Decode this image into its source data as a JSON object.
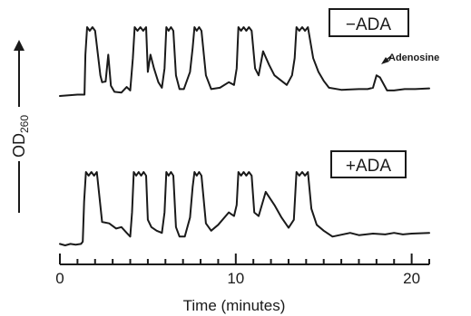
{
  "chart_data": {
    "type": "line",
    "xlabel": "Time (minutes)",
    "ylabel_main": "OD",
    "ylabel_sub": "260",
    "xlim": [
      0,
      21
    ],
    "xticks": [
      0,
      10,
      20
    ],
    "xtick_labels": [
      "0",
      "10",
      "20"
    ],
    "grid": false,
    "series": [
      {
        "name": "−ADA",
        "x": [
          0,
          1,
          1.4,
          1.45,
          1.55,
          2.0,
          2.3,
          2.4,
          2.6,
          2.75,
          2.9,
          3.1,
          3.5,
          3.8,
          4.0,
          4.15,
          4.25,
          4.9,
          5.0,
          5.15,
          5.35,
          5.6,
          5.8,
          5.95,
          6.05,
          6.45,
          6.6,
          6.8,
          7.05,
          7.4,
          7.55,
          7.65,
          8.05,
          8.3,
          8.6,
          9.1,
          9.6,
          9.9,
          10.05,
          10.15,
          10.9,
          11.1,
          11.3,
          11.55,
          11.9,
          12.2,
          12.6,
          12.9,
          13.2,
          13.35,
          13.45,
          14.1,
          14.4,
          14.7,
          15.0,
          15.3,
          16.0,
          17.0,
          17.5,
          17.8,
          18.0,
          18.2,
          18.6,
          19.0,
          19.6,
          20.2,
          21.0
        ],
        "y": [
          0.0,
          0.02,
          0.02,
          0.6,
          1.0,
          1.0,
          0.3,
          0.2,
          0.21,
          0.6,
          0.15,
          0.06,
          0.05,
          0.13,
          0.08,
          0.55,
          1.0,
          1.0,
          0.35,
          0.6,
          0.4,
          0.2,
          0.12,
          0.4,
          1.0,
          1.0,
          0.3,
          0.1,
          0.1,
          0.35,
          0.7,
          1.0,
          1.0,
          0.3,
          0.1,
          0.12,
          0.2,
          0.16,
          0.4,
          1.0,
          1.0,
          0.4,
          0.3,
          0.65,
          0.45,
          0.3,
          0.22,
          0.16,
          0.3,
          0.55,
          1.0,
          1.0,
          0.55,
          0.35,
          0.22,
          0.12,
          0.09,
          0.1,
          0.1,
          0.12,
          0.3,
          0.27,
          0.08,
          0.08,
          0.1,
          0.1,
          0.11
        ]
      },
      {
        "name": "+ADA",
        "x": [
          0,
          0.3,
          0.6,
          0.9,
          1.2,
          1.3,
          1.38,
          1.48,
          2.1,
          2.4,
          2.8,
          3.2,
          3.5,
          3.8,
          4.0,
          4.1,
          4.2,
          4.9,
          5.0,
          5.2,
          5.5,
          5.8,
          5.95,
          6.05,
          6.45,
          6.6,
          6.8,
          7.1,
          7.4,
          7.55,
          7.65,
          8.05,
          8.3,
          8.6,
          9.0,
          9.6,
          9.9,
          10.05,
          10.15,
          10.9,
          11.05,
          11.3,
          11.7,
          12.2,
          12.6,
          13.0,
          13.3,
          13.45,
          14.1,
          14.3,
          14.6,
          15.0,
          15.5,
          16.5,
          17.0,
          17.8,
          18.5,
          19.0,
          19.5,
          20.0,
          21.0
        ],
        "y": [
          0.02,
          0.0,
          0.02,
          0.01,
          0.02,
          0.05,
          0.6,
          1.0,
          1.0,
          0.32,
          0.3,
          0.23,
          0.25,
          0.17,
          0.12,
          0.45,
          1.0,
          1.0,
          0.35,
          0.25,
          0.2,
          0.17,
          0.45,
          1.0,
          1.0,
          0.25,
          0.12,
          0.12,
          0.38,
          0.8,
          1.0,
          1.0,
          0.3,
          0.2,
          0.28,
          0.45,
          0.4,
          0.55,
          1.0,
          1.0,
          0.45,
          0.4,
          0.73,
          0.55,
          0.38,
          0.24,
          0.35,
          1.0,
          1.0,
          0.5,
          0.28,
          0.2,
          0.12,
          0.17,
          0.14,
          0.16,
          0.15,
          0.17,
          0.15,
          0.16,
          0.17
        ]
      }
    ],
    "annotations": [
      {
        "text": "Adenosine",
        "series": "−ADA",
        "x": 18.2
      }
    ]
  }
}
